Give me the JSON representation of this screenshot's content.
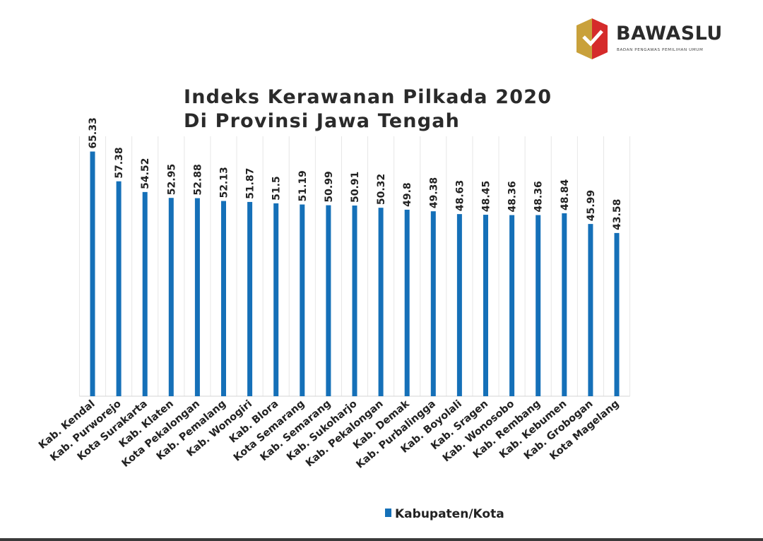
{
  "logo": {
    "name": "BAWASLU",
    "subtitle": "BADAN PENGAWAS PEMILIHAN UMUM",
    "colors": {
      "red": "#d52b2b",
      "gold": "#c9a13b"
    }
  },
  "chart_data": {
    "type": "bar",
    "title": "Indeks Kerawanan Pilkada 2020",
    "subtitle": "Di Provinsi Jawa Tengah",
    "xlabel": "",
    "ylabel": "",
    "ylim": [
      0,
      66
    ],
    "grid": true,
    "legend": "bottom-center",
    "bar_color": "#1570b8",
    "categories": [
      "Kab. Kendal",
      "Kab. Purworejo",
      "Kota Surakarta",
      "Kab. Klaten",
      "Kota Pekalongan",
      "Kab. Pemalang",
      "Kab. Wonogiri",
      "Kab. Blora",
      "Kota Semarang",
      "Kab. Semarang",
      "Kab. Sukoharjo",
      "Kab. Pekalongan",
      "Kab. Demak",
      "Kab. Purbalingga",
      "Kab. Boyolali",
      "Kab. Sragen",
      "Kab. Wonosobo",
      "Kab. Rembang",
      "Kab. Kebumen",
      "Kab. Grobogan",
      "Kota Magelang"
    ],
    "series": [
      {
        "name": "Kabupaten/Kota",
        "values": [
          65.33,
          57.38,
          54.52,
          52.95,
          52.88,
          52.13,
          51.87,
          51.5,
          51.19,
          50.99,
          50.91,
          50.32,
          49.8,
          49.38,
          48.63,
          48.45,
          48.36,
          48.36,
          48.84,
          45.99,
          43.58
        ],
        "labels": [
          "65.33",
          "57.38",
          "54.52",
          "52.95",
          "52.88",
          "52.13",
          "51.87",
          "51.5",
          "51.19",
          "50.99",
          "50.91",
          "50.32",
          "49.8",
          "49.38",
          "48.63",
          "48.45",
          "48.36",
          "48.36",
          "48.84",
          "45.99",
          "43.58"
        ]
      }
    ]
  }
}
